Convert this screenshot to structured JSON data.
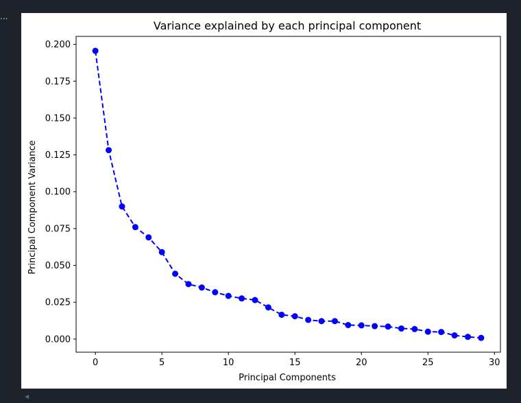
{
  "toolbar": {
    "more_glyph": "..."
  },
  "chart_data": {
    "type": "line",
    "title": "Variance explained by each principal component",
    "xlabel": "Principal Components",
    "ylabel": "Principal Component Variance",
    "x": [
      0,
      1,
      2,
      3,
      4,
      5,
      6,
      7,
      8,
      9,
      10,
      11,
      12,
      13,
      14,
      15,
      16,
      17,
      18,
      19,
      20,
      21,
      22,
      23,
      24,
      25,
      26,
      27,
      28,
      29
    ],
    "series": [
      {
        "values": [
          0.1956,
          0.1282,
          0.09,
          0.076,
          0.069,
          0.059,
          0.0443,
          0.0373,
          0.035,
          0.0318,
          0.0293,
          0.0276,
          0.0265,
          0.0215,
          0.0165,
          0.0155,
          0.013,
          0.0122,
          0.0122,
          0.0095,
          0.0093,
          0.0088,
          0.0085,
          0.0072,
          0.0068,
          0.005,
          0.0048,
          0.0025,
          0.0015,
          0.0008
        ],
        "color": "#0000ff",
        "line_style": "dashed",
        "marker": "circle"
      }
    ],
    "xlim": [
      -1.45,
      30.45
    ],
    "ylim": [
      -0.0089,
      0.2054
    ],
    "xticks": [
      0,
      5,
      10,
      15,
      20,
      25,
      30
    ],
    "yticks": [
      0.0,
      0.025,
      0.05,
      0.075,
      0.1,
      0.125,
      0.15,
      0.175,
      0.2
    ],
    "xtick_labels": [
      "0",
      "5",
      "10",
      "15",
      "20",
      "25",
      "30"
    ],
    "ytick_labels": [
      "0.000",
      "0.025",
      "0.050",
      "0.075",
      "0.100",
      "0.125",
      "0.150",
      "0.175",
      "0.200"
    ],
    "grid": false,
    "legend": false
  }
}
